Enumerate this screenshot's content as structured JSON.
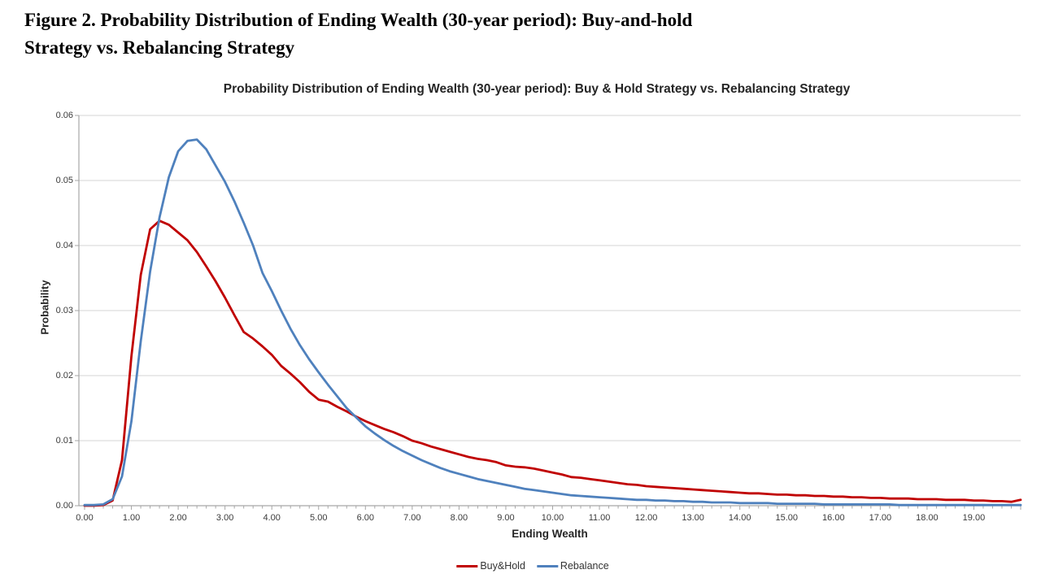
{
  "figure": {
    "caption_line1": "Figure 2. Probability Distribution of Ending Wealth (30-year period): Buy-and-hold",
    "caption_line2": "Strategy vs. Rebalancing Strategy"
  },
  "chart_data": {
    "type": "line",
    "title": "Probability Distribution of Ending Wealth (30-year period): Buy & Hold Strategy vs. Rebalancing Strategy",
    "xlabel": "Ending Wealth",
    "ylabel": "Probability",
    "xlim": [
      0,
      20.1
    ],
    "ylim": [
      0,
      0.06
    ],
    "grid": "horizontal",
    "legend_position": "bottom-center",
    "x_tick_labels": [
      "0.00",
      "1.00",
      "2.00",
      "3.00",
      "4.00",
      "5.00",
      "6.00",
      "7.00",
      "8.00",
      "9.00",
      "10.00",
      "11.00",
      "12.00",
      "13.00",
      "14.00",
      "15.00",
      "16.00",
      "17.00",
      "18.00",
      "19.00"
    ],
    "y_tick_labels": [
      "0.00",
      "0.01",
      "0.02",
      "0.03",
      "0.04",
      "0.05",
      "0.06"
    ],
    "x": [
      0.0,
      0.2,
      0.4,
      0.6,
      0.8,
      1.0,
      1.2,
      1.4,
      1.6,
      1.8,
      2.0,
      2.2,
      2.4,
      2.6,
      2.8,
      3.0,
      3.2,
      3.4,
      3.6,
      3.8,
      4.0,
      4.2,
      4.4,
      4.6,
      4.8,
      5.0,
      5.2,
      5.4,
      5.6,
      5.8,
      6.0,
      6.2,
      6.4,
      6.6,
      6.8,
      7.0,
      7.2,
      7.4,
      7.6,
      7.8,
      8.0,
      8.2,
      8.4,
      8.6,
      8.8,
      9.0,
      9.2,
      9.4,
      9.6,
      9.8,
      10.0,
      10.2,
      10.4,
      10.6,
      10.8,
      11.0,
      11.2,
      11.4,
      11.6,
      11.8,
      12.0,
      12.2,
      12.4,
      12.6,
      12.8,
      13.0,
      13.2,
      13.4,
      13.6,
      13.8,
      14.0,
      14.2,
      14.4,
      14.6,
      14.8,
      15.0,
      15.2,
      15.4,
      15.6,
      15.8,
      16.0,
      16.2,
      16.4,
      16.6,
      16.8,
      17.0,
      17.2,
      17.4,
      17.6,
      17.8,
      18.0,
      18.2,
      18.4,
      18.6,
      18.8,
      19.0,
      19.2,
      19.4,
      19.6,
      19.8,
      20.0
    ],
    "series": [
      {
        "name": "Buy&Hold",
        "color": "#C00000",
        "values": [
          0.0,
          0.0,
          0.0001,
          0.0008,
          0.007,
          0.023,
          0.0355,
          0.0425,
          0.0438,
          0.0432,
          0.042,
          0.0408,
          0.039,
          0.0368,
          0.0345,
          0.032,
          0.0293,
          0.0267,
          0.0257,
          0.0245,
          0.0232,
          0.0215,
          0.0203,
          0.019,
          0.0175,
          0.0163,
          0.016,
          0.0152,
          0.0145,
          0.0137,
          0.013,
          0.0124,
          0.0118,
          0.0113,
          0.0107,
          0.01,
          0.0096,
          0.0091,
          0.0087,
          0.0083,
          0.0079,
          0.0075,
          0.0072,
          0.007,
          0.0067,
          0.0062,
          0.006,
          0.0059,
          0.0057,
          0.0054,
          0.0051,
          0.0048,
          0.0044,
          0.0043,
          0.0041,
          0.0039,
          0.0037,
          0.0035,
          0.0033,
          0.0032,
          0.003,
          0.0029,
          0.0028,
          0.0027,
          0.0026,
          0.0025,
          0.0024,
          0.0023,
          0.0022,
          0.0021,
          0.002,
          0.0019,
          0.0019,
          0.0018,
          0.0017,
          0.0017,
          0.0016,
          0.0016,
          0.0015,
          0.0015,
          0.0014,
          0.0014,
          0.0013,
          0.0013,
          0.0012,
          0.0012,
          0.0011,
          0.0011,
          0.0011,
          0.001,
          0.001,
          0.001,
          0.0009,
          0.0009,
          0.0009,
          0.0008,
          0.0008,
          0.0007,
          0.0007,
          0.0006,
          0.0009
        ]
      },
      {
        "name": "Rebalance",
        "color": "#4F81BD",
        "values": [
          0.0001,
          0.0001,
          0.0002,
          0.001,
          0.0045,
          0.013,
          0.0253,
          0.036,
          0.0443,
          0.0505,
          0.0545,
          0.0561,
          0.0563,
          0.0548,
          0.0523,
          0.0498,
          0.0468,
          0.0435,
          0.04,
          0.0358,
          0.033,
          0.03,
          0.0272,
          0.0247,
          0.0225,
          0.0205,
          0.0186,
          0.0168,
          0.015,
          0.0136,
          0.0122,
          0.0111,
          0.0101,
          0.0092,
          0.0084,
          0.0077,
          0.007,
          0.0064,
          0.0058,
          0.0053,
          0.0049,
          0.0045,
          0.0041,
          0.0038,
          0.0035,
          0.0032,
          0.0029,
          0.0026,
          0.0024,
          0.0022,
          0.002,
          0.0018,
          0.0016,
          0.0015,
          0.0014,
          0.0013,
          0.0012,
          0.0011,
          0.001,
          0.0009,
          0.0009,
          0.0008,
          0.0008,
          0.0007,
          0.0007,
          0.0006,
          0.0006,
          0.0005,
          0.0005,
          0.0005,
          0.0004,
          0.0004,
          0.0004,
          0.0004,
          0.0003,
          0.0003,
          0.0003,
          0.0003,
          0.0003,
          0.0002,
          0.0002,
          0.0002,
          0.0002,
          0.0002,
          0.0002,
          0.0002,
          0.0002,
          0.0001,
          0.0001,
          0.0001,
          0.0001,
          0.0001,
          0.0001,
          0.0001,
          0.0001,
          0.0001,
          0.0001,
          0.0001,
          0.0001,
          0.0001,
          0.0001
        ]
      }
    ],
    "colors": {
      "gridline": "#D6D6D6",
      "axis_line": "#A6A6A6",
      "tick_mark": "#A6A6A6",
      "title_text": "#262626",
      "tick_text": "#3b3b3b",
      "background": "#FFFFFF"
    }
  },
  "legend": {
    "items": [
      {
        "label": "Buy&Hold",
        "color": "#C00000"
      },
      {
        "label": "Rebalance",
        "color": "#4F81BD"
      }
    ]
  }
}
